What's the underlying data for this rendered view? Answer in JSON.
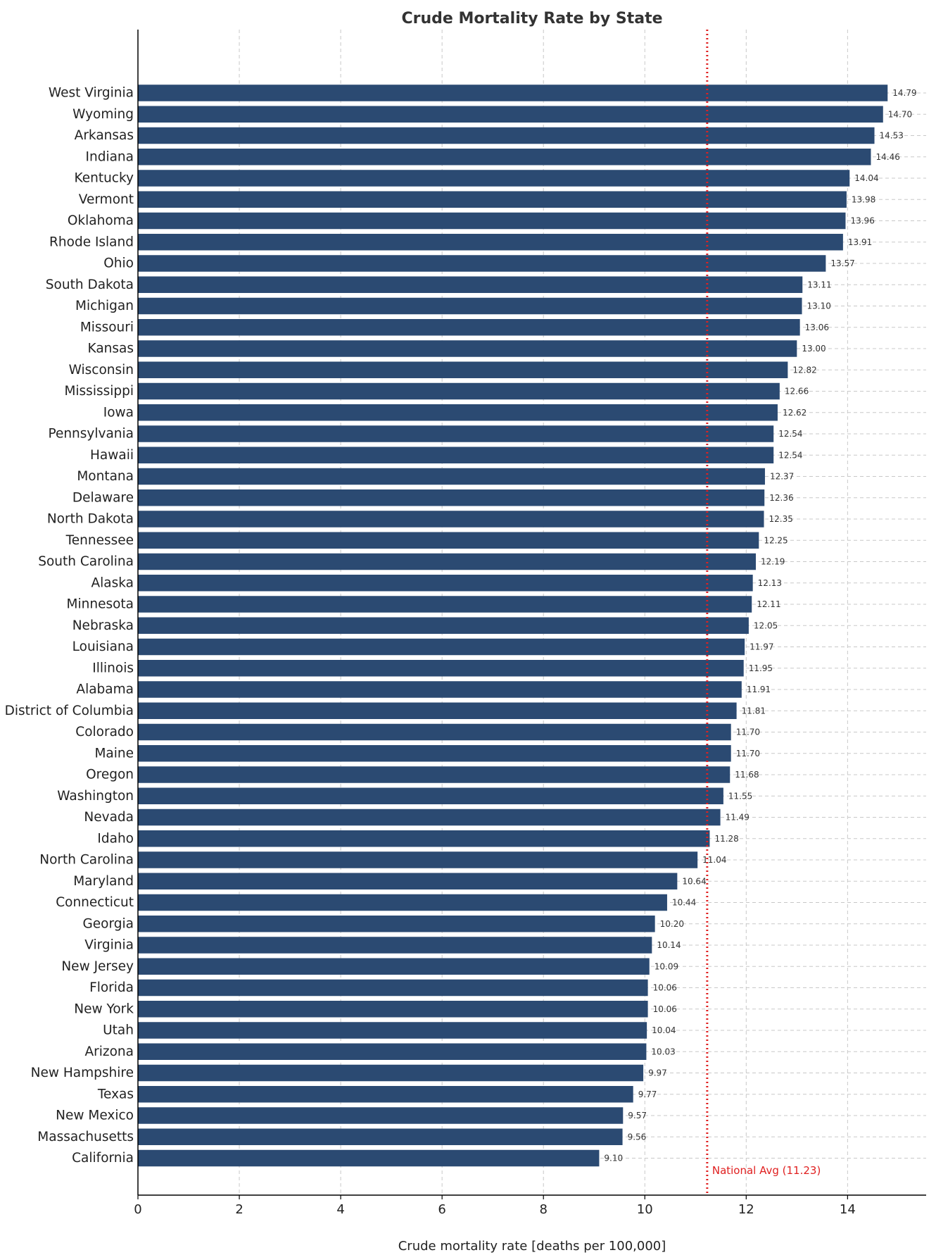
{
  "chart_data": {
    "type": "bar",
    "orientation": "horizontal",
    "title": "Crude Mortality Rate by State",
    "xlabel": "Crude mortality rate [deaths per 100,000]",
    "ylabel": "",
    "xlim": [
      0,
      15.55
    ],
    "xticks": [
      0,
      2,
      4,
      6,
      8,
      10,
      12,
      14
    ],
    "grid": true,
    "bar_color": "#2b4a72",
    "categories": [
      "West Virginia",
      "Wyoming",
      "Arkansas",
      "Indiana",
      "Kentucky",
      "Vermont",
      "Oklahoma",
      "Rhode Island",
      "Ohio",
      "South Dakota",
      "Michigan",
      "Missouri",
      "Kansas",
      "Wisconsin",
      "Mississippi",
      "Iowa",
      "Pennsylvania",
      "Hawaii",
      "Montana",
      "Delaware",
      "North Dakota",
      "Tennessee",
      "South Carolina",
      "Alaska",
      "Minnesota",
      "Nebraska",
      "Louisiana",
      "Illinois",
      "Alabama",
      "District of Columbia",
      "Colorado",
      "Maine",
      "Oregon",
      "Washington",
      "Nevada",
      "Idaho",
      "North Carolina",
      "Maryland",
      "Connecticut",
      "Georgia",
      "Virginia",
      "New Jersey",
      "Florida",
      "New York",
      "Utah",
      "Arizona",
      "New Hampshire",
      "Texas",
      "New Mexico",
      "Massachusetts",
      "California"
    ],
    "values": [
      14.79,
      14.7,
      14.53,
      14.46,
      14.04,
      13.98,
      13.96,
      13.91,
      13.57,
      13.11,
      13.1,
      13.06,
      13.0,
      12.82,
      12.66,
      12.62,
      12.54,
      12.54,
      12.37,
      12.36,
      12.35,
      12.25,
      12.19,
      12.13,
      12.11,
      12.05,
      11.97,
      11.95,
      11.91,
      11.81,
      11.7,
      11.7,
      11.68,
      11.55,
      11.49,
      11.28,
      11.04,
      10.64,
      10.44,
      10.2,
      10.14,
      10.09,
      10.06,
      10.06,
      10.04,
      10.03,
      9.97,
      9.77,
      9.57,
      9.56,
      9.1
    ],
    "value_labels": [
      "14.79",
      "14.70",
      "14.53",
      "14.46",
      "14.04",
      "13.98",
      "13.96",
      "13.91",
      "13.57",
      "13.11",
      "13.10",
      "13.06",
      "13.00",
      "12.82",
      "12.66",
      "12.62",
      "12.54",
      "12.54",
      "12.37",
      "12.36",
      "12.35",
      "12.25",
      "12.19",
      "12.13",
      "12.11",
      "12.05",
      "11.97",
      "11.95",
      "11.91",
      "11.81",
      "11.70",
      "11.70",
      "11.68",
      "11.55",
      "11.49",
      "11.28",
      "11.04",
      "10.64",
      "10.44",
      "10.20",
      "10.14",
      "10.09",
      "10.06",
      "10.06",
      "10.04",
      "10.03",
      "9.97",
      "9.77",
      "9.57",
      "9.56",
      "9.10"
    ],
    "reference_line": {
      "value": 11.23,
      "label": "National Avg (11.23)",
      "color": "#e02020",
      "style": "dotted"
    }
  }
}
